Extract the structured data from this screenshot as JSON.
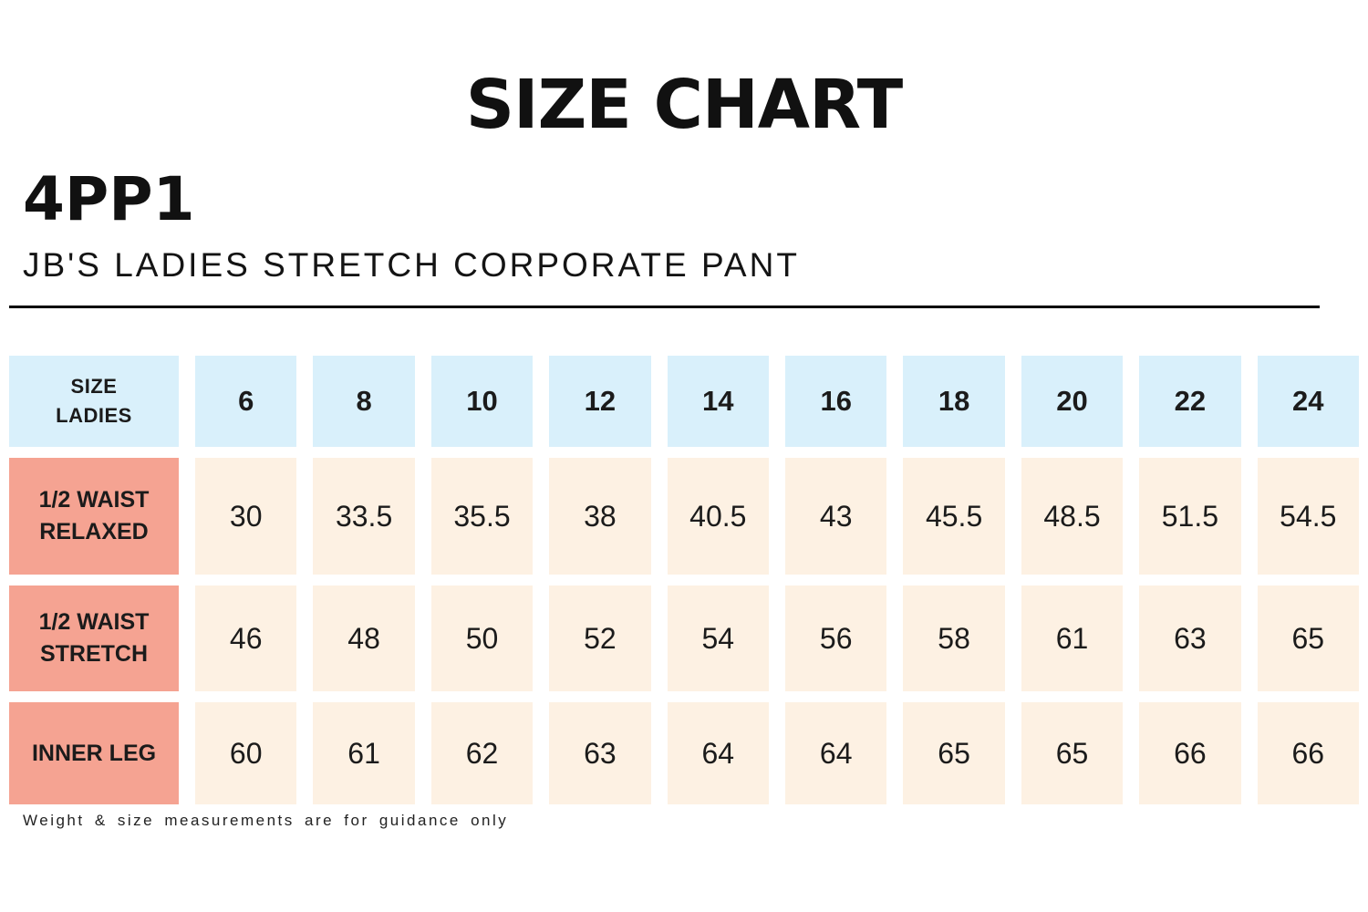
{
  "page": {
    "title": "SIZE CHART",
    "product_code": "4PP1",
    "product_name": "JB'S LADIES STRETCH CORPORATE PANT",
    "footnote": "Weight & size measurements are for guidance only"
  },
  "colors": {
    "header_cell_blue": "#d9f0fb",
    "row_label_salmon": "#f5a392",
    "data_cell_cream": "#fdf1e3",
    "text": "#1b1b1b",
    "divider": "#000000",
    "background": "#ffffff"
  },
  "chart_data": {
    "type": "table",
    "title": "SIZE CHART",
    "corner_label": "SIZE\nLADIES",
    "columns": [
      "6",
      "8",
      "10",
      "12",
      "14",
      "16",
      "18",
      "20",
      "22",
      "24"
    ],
    "rows": [
      {
        "label": "1/2 WAIST RELAXED",
        "values": [
          "30",
          "33.5",
          "35.5",
          "38",
          "40.5",
          "43",
          "45.5",
          "48.5",
          "51.5",
          "54.5"
        ]
      },
      {
        "label": "1/2 WAIST STRETCH",
        "values": [
          "46",
          "48",
          "50",
          "52",
          "54",
          "56",
          "58",
          "61",
          "63",
          "65"
        ]
      },
      {
        "label": "INNER LEG",
        "values": [
          "60",
          "61",
          "62",
          "63",
          "64",
          "64",
          "65",
          "65",
          "66",
          "66"
        ]
      }
    ],
    "footnote": "Weight & size measurements are for guidance only"
  }
}
